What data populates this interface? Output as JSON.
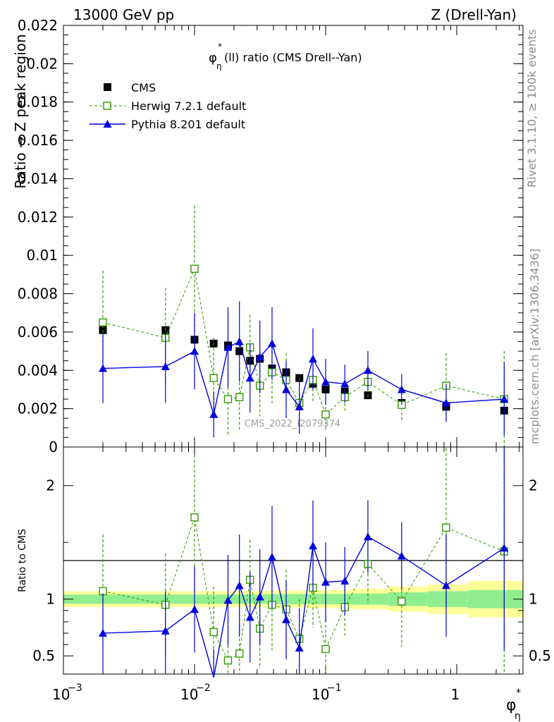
{
  "header": {
    "left": "13000 GeV pp",
    "right": "Z (Drell-Yan)"
  },
  "side_labels": {
    "rivet": "Rivet 3.1.10, ≥ 100k events",
    "mcplots": "mcplots.cern.ch [arXiv:1306.3436]"
  },
  "chart_data": [
    {
      "type": "scatter",
      "panel": "main",
      "title_main": "φ",
      "title_sup": "*",
      "title_sub": "η",
      "title_rest": "(ll) ratio (CMS Drell--Yan)",
      "ylabel": "Ratio → Z peak region",
      "watermark": "CMS_2022_I2079374",
      "x_scale": "log",
      "xlim": [
        0.001,
        3.2
      ],
      "ylim": [
        0,
        0.022
      ],
      "yticks": [
        0,
        0.002,
        0.004,
        0.006,
        0.008,
        0.01,
        0.012,
        0.014,
        0.016,
        0.018,
        0.02,
        0.022
      ],
      "ytick_labels": [
        "0",
        "0.002",
        "0.004",
        "0.006",
        "0.008",
        "0.01",
        "0.012",
        "0.014",
        "0.016",
        "0.018",
        "0.02",
        "0.022"
      ],
      "x": [
        0.002,
        0.006,
        0.01,
        0.014,
        0.018,
        0.022,
        0.0265,
        0.0315,
        0.039,
        0.05,
        0.063,
        0.08,
        0.1,
        0.14,
        0.21,
        0.38,
        0.83,
        2.3
      ],
      "legend_position": "top-left",
      "series": [
        {
          "name": "CMS",
          "color": "#000000",
          "marker": "filled-square",
          "line": "none",
          "values": [
            0.0061,
            0.0061,
            0.0056,
            0.0054,
            0.0053,
            0.005,
            0.0045,
            0.0046,
            0.0041,
            0.0039,
            0.0036,
            0.0033,
            0.003,
            0.0029,
            0.0027,
            0.0023,
            0.0021,
            0.0019
          ],
          "err": [
            0.00015,
            0.00015,
            0.00015,
            0.00012,
            0.00012,
            0.00012,
            0.0001,
            0.0001,
            0.0001,
            0.0001,
            0.0001,
            0.0001,
            0.0001,
            0.0001,
            0.0001,
            0.0001,
            0.0001,
            0.0001
          ]
        },
        {
          "name": "Herwig 7.2.1 default",
          "color": "#339900",
          "marker": "open-square",
          "line": "dashed",
          "values": [
            0.0065,
            0.0057,
            0.0093,
            0.0036,
            0.0025,
            0.0026,
            0.0052,
            0.0032,
            0.0039,
            0.0035,
            0.0023,
            0.0035,
            0.0017,
            0.0026,
            0.0034,
            0.0022,
            0.0032,
            0.0025
          ],
          "err": [
            0.0027,
            0.0026,
            0.0033,
            0.0021,
            0.0019,
            0.0018,
            0.0017,
            0.0016,
            0.0016,
            0.0014,
            0.0013,
            0.0011,
            0.0009,
            0.0007,
            0.0009,
            0.0009,
            0.0017,
            0.0025
          ]
        },
        {
          "name": "Pythia 8.201 default",
          "color": "#0000dd",
          "marker": "filled-triangle",
          "line": "solid",
          "values": [
            0.0041,
            0.0042,
            0.005,
            0.0017,
            0.0052,
            0.0055,
            0.0036,
            0.0047,
            0.0054,
            0.003,
            0.0021,
            0.0046,
            0.0034,
            0.0033,
            0.004,
            0.003,
            0.0023,
            0.0025
          ],
          "err": [
            0.0018,
            0.0019,
            0.002,
            0.0012,
            0.0021,
            0.0021,
            0.0018,
            0.0019,
            0.0019,
            0.0015,
            0.0014,
            0.0016,
            0.0012,
            0.001,
            0.001,
            0.0008,
            0.001,
            0.0019
          ]
        }
      ]
    },
    {
      "type": "scatter",
      "panel": "ratio",
      "ylabel": "Ratio to CMS",
      "xlabel_main": "φ",
      "xlabel_sup": "*",
      "xlabel_sub": "η",
      "x_scale": "log",
      "xlim": [
        0.001,
        3.2
      ],
      "ylim": [
        0.34,
        2.34
      ],
      "yticks": [
        0.5,
        1,
        2
      ],
      "ytick_labels": [
        "0.5",
        "1",
        "2"
      ],
      "xtick_base": "10",
      "xtick_exps": [
        "−3",
        "−2",
        "−1"
      ],
      "xtick_plain": "1",
      "x": [
        0.002,
        0.006,
        0.01,
        0.014,
        0.018,
        0.022,
        0.0265,
        0.0315,
        0.039,
        0.05,
        0.063,
        0.08,
        0.1,
        0.14,
        0.21,
        0.38,
        0.83,
        2.3
      ],
      "band_edges": [
        0.001,
        0.012,
        0.035,
        0.07,
        0.16,
        0.3,
        0.6,
        1.2,
        3.2
      ],
      "band_inner": [
        0.04,
        0.04,
        0.045,
        0.045,
        0.05,
        0.06,
        0.07,
        0.08
      ],
      "band_outer": [
        0.07,
        0.07,
        0.075,
        0.08,
        0.09,
        0.11,
        0.13,
        0.16
      ],
      "band_colors": {
        "inner": "#90ee90",
        "outer": "#ffff99"
      },
      "series": [
        {
          "name": "Herwig 7.2.1 default",
          "color": "#339900",
          "marker": "open-square",
          "line": "dashed",
          "values": [
            1.07,
            0.95,
            1.72,
            0.71,
            0.46,
            0.52,
            1.17,
            0.74,
            0.95,
            0.91,
            0.65,
            1.1,
            0.56,
            0.93,
            1.31,
            0.98,
            1.63,
            1.42
          ],
          "err": [
            0.5,
            0.45,
            0.55,
            0.4,
            0.35,
            0.35,
            0.35,
            0.35,
            0.4,
            0.35,
            0.35,
            0.35,
            0.3,
            0.25,
            0.35,
            0.4,
            0.7,
            1.2
          ]
        },
        {
          "name": "Pythia 8.201 default",
          "color": "#0000dd",
          "marker": "filled-triangle",
          "line": "solid",
          "values": [
            0.7,
            0.72,
            0.91,
            0.31,
            0.99,
            1.12,
            0.84,
            1.02,
            1.37,
            0.82,
            0.57,
            1.47,
            1.15,
            1.16,
            1.55,
            1.38,
            1.12,
            1.45
          ],
          "err": [
            0.35,
            0.35,
            0.38,
            0.25,
            0.4,
            0.45,
            0.4,
            0.42,
            0.45,
            0.35,
            0.35,
            0.4,
            0.35,
            0.3,
            0.32,
            0.3,
            0.45,
            0.9
          ]
        }
      ]
    }
  ]
}
